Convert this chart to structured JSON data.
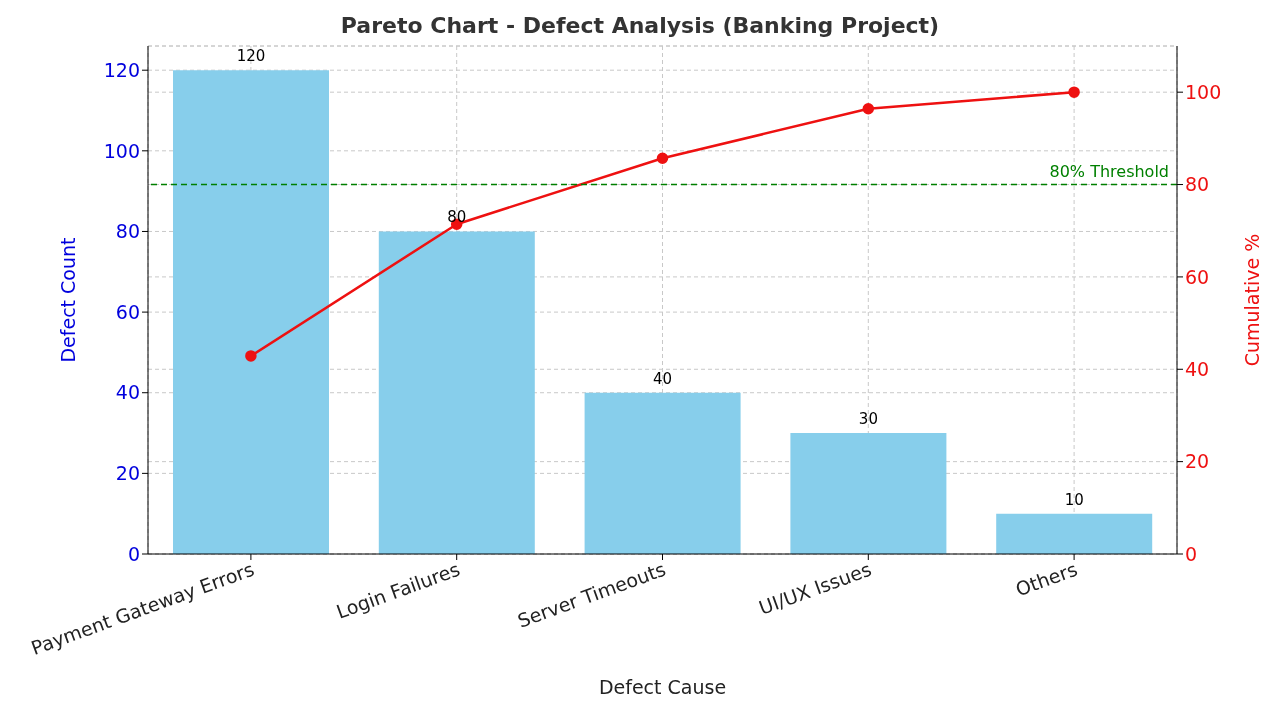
{
  "chart_data": {
    "type": "bar",
    "title": "Pareto Chart - Defect Analysis (Banking Project)",
    "xlabel": "Defect Cause",
    "ylabel": "Defect Count",
    "y2label": "Cumulative %",
    "categories": [
      "Payment Gateway Errors",
      "Login Failures",
      "Server Timeouts",
      "UI/UX Issues",
      "Others"
    ],
    "series": [
      {
        "color": "#87ceeb",
        "values": [
          120,
          80,
          40,
          30,
          10
        ],
        "value_labels": [
          "120",
          "80",
          "40",
          "30",
          "10"
        ]
      },
      {
        "type": "line",
        "axis": "y2",
        "color": "#ee1111",
        "values": [
          42.9,
          71.4,
          85.7,
          96.4,
          100
        ]
      }
    ],
    "ylim": [
      0,
      126
    ],
    "yticks": [
      0,
      20,
      40,
      60,
      80,
      100,
      120
    ],
    "y2lim": [
      0,
      110
    ],
    "y2ticks": [
      0,
      20,
      40,
      60,
      80,
      100
    ],
    "grid": true,
    "marker": "circle",
    "line_style": "solid",
    "ref_lines": [
      {
        "axis": "y2",
        "value": 80,
        "label": "80% Threshold",
        "color": "#008000",
        "line_style": "dashed"
      }
    ]
  }
}
